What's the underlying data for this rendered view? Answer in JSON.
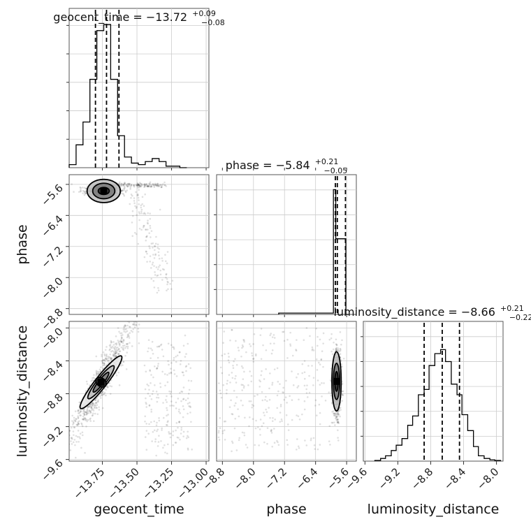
{
  "chart_data": {
    "type": "corner",
    "parameters": [
      "geocent_time",
      "phase",
      "luminosity_distance"
    ],
    "ranges": {
      "geocent_time": [
        -13.99,
        -12.98
      ],
      "phase": [
        -8.95,
        -5.35
      ],
      "luminosity_distance": [
        -9.62,
        -7.92
      ]
    },
    "ticks": {
      "geocent_time": {
        "values": [
          -13.75,
          -13.5,
          -13.25,
          -13.0
        ],
        "labels": [
          "−13.75",
          "−13.50",
          "−13.25",
          "−13.00"
        ]
      },
      "phase": {
        "values": [
          -8.8,
          -8.0,
          -7.2,
          -6.4,
          -5.6
        ],
        "labels": [
          "−8.8",
          "−8.0",
          "−7.2",
          "−6.4",
          "−5.6"
        ]
      },
      "luminosity_distance": {
        "values": [
          -9.6,
          -9.2,
          -8.8,
          -8.4,
          -8.0
        ],
        "labels": [
          "−9.6",
          "−9.2",
          "−8.8",
          "−8.4",
          "−8.0"
        ]
      }
    },
    "titles": [
      {
        "param": "geocent_time",
        "text": "geocent_time = −13.72",
        "plus": "+0.09",
        "minus": "−0.08"
      },
      {
        "param": "phase",
        "text": "phase = −5.84",
        "plus": "+0.21",
        "minus": "−0.05"
      },
      {
        "param": "luminosity_distance",
        "text": "luminosity_distance = −8.66",
        "plus": "+0.21",
        "minus": "−0.22"
      }
    ],
    "quantiles": {
      "geocent_time": [
        -13.8,
        -13.72,
        -13.63
      ],
      "phase": [
        -5.89,
        -5.84,
        -5.63
      ],
      "luminosity_distance": [
        -8.88,
        -8.66,
        -8.45
      ]
    },
    "histograms": {
      "geocent_time": {
        "edges": [
          -13.99,
          -13.94,
          -13.89,
          -13.84,
          -13.79,
          -13.74,
          -13.69,
          -13.64,
          -13.59,
          -13.54,
          -13.49,
          -13.44,
          -13.39,
          -13.34,
          -13.29,
          -13.24,
          -13.19,
          -13.14
        ],
        "counts": [
          0.02,
          0.15,
          0.3,
          0.58,
          0.9,
          0.94,
          0.58,
          0.21,
          0.07,
          0.03,
          0.02,
          0.04,
          0.06,
          0.04,
          0.01,
          0.01,
          0.0
        ]
      },
      "phase": {
        "edges": [
          -7.35,
          -5.94,
          -5.88,
          -5.81,
          -5.75,
          -5.68,
          -5.62,
          -5.55
        ],
        "counts": [
          0.01,
          0.94,
          0.57,
          0.57,
          0.57,
          0.57,
          0.0
        ]
      },
      "luminosity_distance": {
        "edges": [
          -9.48,
          -9.41,
          -9.35,
          -9.28,
          -9.22,
          -9.15,
          -9.08,
          -9.02,
          -8.95,
          -8.88,
          -8.82,
          -8.75,
          -8.68,
          -8.62,
          -8.55,
          -8.48,
          -8.42,
          -8.35,
          -8.28,
          -8.22,
          -8.15,
          -8.08,
          -8.02,
          -7.95
        ],
        "counts": [
          0.005,
          0.02,
          0.04,
          0.08,
          0.12,
          0.17,
          0.27,
          0.34,
          0.5,
          0.54,
          0.72,
          0.81,
          0.84,
          0.75,
          0.58,
          0.5,
          0.35,
          0.23,
          0.11,
          0.04,
          0.02,
          0.01,
          0.005
        ]
      }
    },
    "contours": [
      {
        "x": "geocent_time",
        "y": "phase",
        "center": [
          -13.74,
          -5.77
        ],
        "levels": [
          [
            0.04,
            0.09
          ],
          [
            0.08,
            0.2
          ],
          [
            0.12,
            0.3
          ]
        ]
      },
      {
        "x": "geocent_time",
        "y": "luminosity_distance",
        "center": [
          -13.76,
          -8.66
        ],
        "angle": 52,
        "levels": [
          [
            0.03,
            0.07
          ],
          [
            0.09,
            0.03
          ],
          [
            0.15,
            0.05
          ],
          [
            0.24,
            0.07
          ]
        ]
      },
      {
        "x": "phase",
        "y": "luminosity_distance",
        "center": [
          -5.86,
          -8.65
        ],
        "levels": [
          [
            0.04,
            0.12
          ],
          [
            0.08,
            0.22
          ],
          [
            0.12,
            0.36
          ]
        ]
      }
    ],
    "grid": true,
    "legend": "none"
  }
}
